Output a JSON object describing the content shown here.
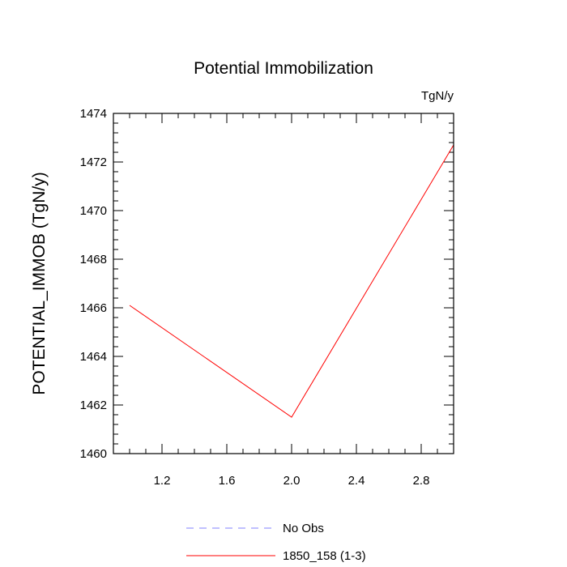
{
  "chart_data": {
    "type": "line",
    "title": "Potential Immobilization",
    "units_label": "TgN/y",
    "xlabel": "",
    "ylabel": "POTENTIAL_IMMOB  (TgN/y)",
    "xlim": [
      0.9,
      3.0
    ],
    "ylim": [
      1460,
      1474
    ],
    "x_ticks": [
      "1.2",
      "1.6",
      "2.0",
      "2.4",
      "2.8"
    ],
    "y_ticks": [
      "1460",
      "1462",
      "1464",
      "1466",
      "1468",
      "1470",
      "1472",
      "1474"
    ],
    "series": [
      {
        "name": "1850_158 (1-3)",
        "color": "#ff0000",
        "x": [
          1.0,
          2.0,
          3.0
        ],
        "y": [
          1466.1,
          1461.5,
          1472.7
        ]
      }
    ],
    "legend": [
      {
        "label": "No Obs",
        "color": "#8080ff",
        "style": "dashed"
      },
      {
        "label": "1850_158 (1-3)",
        "color": "#ff0000",
        "style": "solid"
      }
    ],
    "legend_position": "bottom",
    "grid": false
  }
}
